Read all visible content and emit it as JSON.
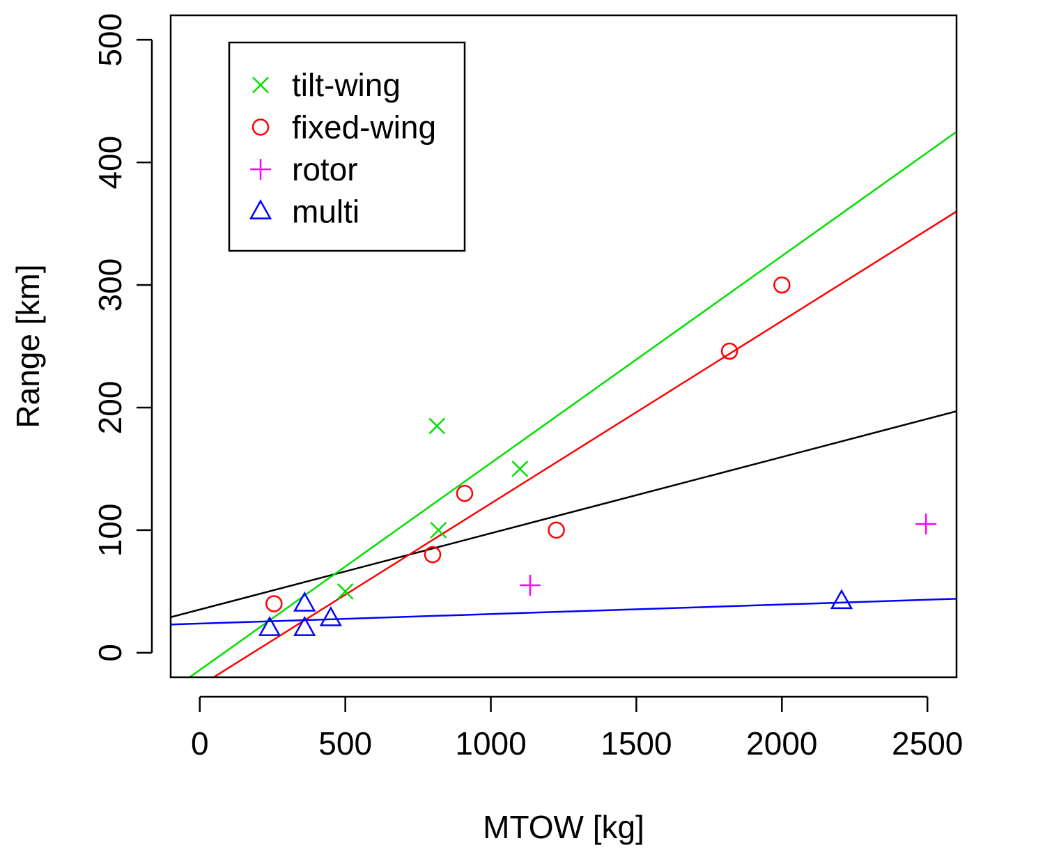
{
  "chart_data": {
    "type": "scatter",
    "xlabel": "MTOW [kg]",
    "ylabel": "Range [km]",
    "xlim": [
      -100,
      2600
    ],
    "ylim": [
      -20,
      520
    ],
    "xticks": [
      0,
      500,
      1000,
      1500,
      2000,
      2500
    ],
    "yticks": [
      0,
      100,
      200,
      300,
      400,
      500
    ],
    "legend_position": "top-left",
    "series": [
      {
        "name": "tilt-wing",
        "color": "#00e000",
        "marker": "x",
        "points": [
          [
            500,
            50
          ],
          [
            815,
            185
          ],
          [
            820,
            100
          ],
          [
            1100,
            150
          ]
        ],
        "fit": [
          [
            -100,
            -31
          ],
          [
            2600,
            425
          ]
        ]
      },
      {
        "name": "fixed-wing",
        "color": "#ff0000",
        "marker": "circle",
        "points": [
          [
            255,
            40
          ],
          [
            800,
            80
          ],
          [
            910,
            130
          ],
          [
            1225,
            100
          ],
          [
            1820,
            246
          ],
          [
            2000,
            300
          ]
        ],
        "fit": [
          [
            -100,
            -42
          ],
          [
            2600,
            360
          ]
        ]
      },
      {
        "name": "rotor",
        "color": "#ff00ff",
        "marker": "plus",
        "points": [
          [
            1135,
            55
          ],
          [
            2495,
            105
          ]
        ],
        "fit": null
      },
      {
        "name": "multi",
        "color": "#0000ff",
        "marker": "triangle",
        "points": [
          [
            240,
            20
          ],
          [
            360,
            40
          ],
          [
            360,
            20
          ],
          [
            450,
            28
          ],
          [
            2205,
            42
          ]
        ],
        "fit": [
          [
            -100,
            23
          ],
          [
            2600,
            44
          ]
        ]
      }
    ],
    "overall_fit": {
      "color": "#000000",
      "line": [
        [
          -100,
          29
        ],
        [
          2600,
          197
        ]
      ]
    }
  }
}
